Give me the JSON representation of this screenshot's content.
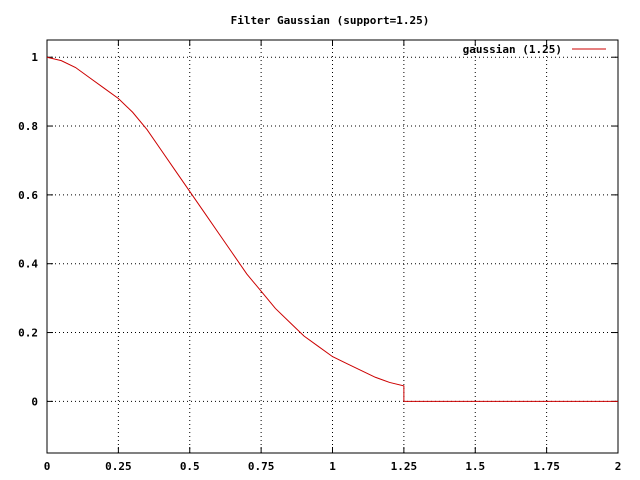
{
  "chart_data": {
    "type": "line",
    "title": "Filter Gaussian (support=1.25)",
    "xlabel": "",
    "ylabel": "",
    "xlim": [
      0,
      2
    ],
    "ylim": [
      -0.15,
      1.05
    ],
    "xticks": [
      0,
      0.25,
      0.5,
      0.75,
      1,
      1.25,
      1.5,
      1.75,
      2
    ],
    "xtick_labels": [
      "0",
      "0.25",
      "0.5",
      "0.75",
      "1",
      "1.25",
      "1.5",
      "1.75",
      "2"
    ],
    "yticks": [
      0,
      0.2,
      0.4,
      0.6,
      0.8,
      1
    ],
    "ytick_labels": [
      "0",
      "0.2",
      "0.4",
      "0.6",
      "0.8",
      "1"
    ],
    "grid": true,
    "legend_position": "top-right",
    "series": [
      {
        "name": "gaussian (1.25)",
        "color": "#cc0000",
        "x": [
          0,
          0.05,
          0.1,
          0.15,
          0.2,
          0.25,
          0.3,
          0.35,
          0.4,
          0.45,
          0.5,
          0.55,
          0.6,
          0.65,
          0.7,
          0.75,
          0.8,
          0.85,
          0.9,
          0.95,
          1,
          1.05,
          1.1,
          1.15,
          1.2,
          1.25,
          1.25,
          1.5,
          1.75,
          2
        ],
        "y": [
          1,
          0.99,
          0.97,
          0.94,
          0.91,
          0.88,
          0.84,
          0.79,
          0.73,
          0.67,
          0.61,
          0.55,
          0.49,
          0.43,
          0.37,
          0.32,
          0.27,
          0.23,
          0.19,
          0.16,
          0.13,
          0.11,
          0.09,
          0.07,
          0.055,
          0.045,
          0,
          0,
          0,
          0
        ]
      }
    ]
  }
}
